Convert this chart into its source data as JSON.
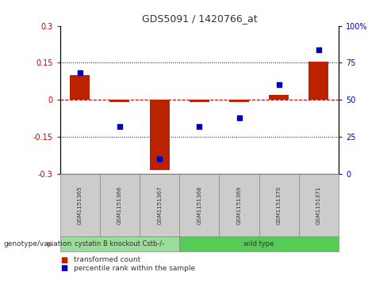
{
  "title": "GDS5091 / 1420766_at",
  "samples": [
    "GSM1151365",
    "GSM1151366",
    "GSM1151367",
    "GSM1151368",
    "GSM1151369",
    "GSM1151370",
    "GSM1151371"
  ],
  "red_values": [
    0.1,
    -0.01,
    -0.285,
    -0.01,
    -0.01,
    0.02,
    0.155
  ],
  "blue_values_pct": [
    68,
    32,
    10,
    32,
    38,
    60,
    84
  ],
  "ylim_left": [
    -0.3,
    0.3
  ],
  "ylim_right": [
    0,
    100
  ],
  "yticks_left": [
    -0.3,
    -0.15,
    0,
    0.15,
    0.3
  ],
  "yticks_right": [
    0,
    25,
    50,
    75,
    100
  ],
  "ytick_labels_left": [
    "-0.3",
    "-0.15",
    "0",
    "0.15",
    "0.3"
  ],
  "ytick_labels_right": [
    "0",
    "25",
    "50",
    "75",
    "100%"
  ],
  "hlines": [
    0.15,
    -0.15
  ],
  "hline_zero_color": "#cc0000",
  "hline_dotted_color": "#000000",
  "bar_color": "#bb2200",
  "dot_color": "#0000bb",
  "bar_width": 0.5,
  "groups": [
    {
      "label": "cystatin B knockout Cstb-/-",
      "start": 0,
      "end": 2,
      "color": "#99dd99"
    },
    {
      "label": "wild type",
      "start": 3,
      "end": 6,
      "color": "#55cc55"
    }
  ],
  "genotype_label": "genotype/variation",
  "legend_red": "transformed count",
  "legend_blue": "percentile rank within the sample",
  "bg_color": "#ffffff",
  "tick_label_color_left": "#cc0000",
  "tick_label_color_right": "#0000cc",
  "sample_box_color": "#cccccc",
  "sample_box_edge": "#888888"
}
